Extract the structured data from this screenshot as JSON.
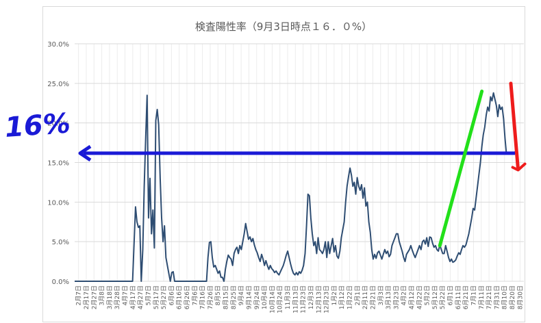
{
  "chart_data": {
    "type": "line",
    "title": "検査陽性率（9月3日時点１６．０%）",
    "xlabel": "",
    "ylabel": "",
    "ylim": [
      0,
      30
    ],
    "y_ticks": [
      "0.0%",
      "5.0%",
      "10.0%",
      "15.0%",
      "20.0%",
      "25.0%",
      "30.0%"
    ],
    "grid": true,
    "legend": "none",
    "x_tick_labels": [
      "2月7日",
      "2月17日",
      "2月27日",
      "3月8日",
      "3月18日",
      "3月28日",
      "4月7日",
      "4月17日",
      "4月27日",
      "5月7日",
      "5月17日",
      "5月27日",
      "6月6日",
      "6月16日",
      "6月26日",
      "7月6日",
      "7月16日",
      "7月26日",
      "8月5日",
      "8月15日",
      "8月25日",
      "9月4日",
      "9月14日",
      "9月24日",
      "10月4日",
      "10月14日",
      "10月24日",
      "11月3日",
      "11月13日",
      "11月23日",
      "12月3日",
      "12月13日",
      "12月23日",
      "1月2日",
      "1月12日",
      "1月22日",
      "2月1日",
      "2月11日",
      "2月21日",
      "3月3日",
      "3月13日",
      "3月23日",
      "4月2日",
      "4月12日",
      "4月22日",
      "5月2日",
      "5月12日",
      "5月22日",
      "6月1日",
      "6月11日",
      "6月21日",
      "7月1日",
      "7月11日",
      "7月21日",
      "7月31日",
      "8月10日",
      "8月20日",
      "8月30日"
    ],
    "series": [
      {
        "color": "#2e4d72",
        "points": [
          [
            0,
            0
          ],
          [
            40,
            0
          ],
          [
            42,
            9.4
          ],
          [
            43,
            7.5
          ],
          [
            44,
            6.8
          ],
          [
            45,
            7
          ],
          [
            46,
            0
          ],
          [
            47,
            4
          ],
          [
            48,
            12
          ],
          [
            49,
            18
          ],
          [
            50,
            23.5
          ],
          [
            51,
            8
          ],
          [
            52,
            13
          ],
          [
            53,
            6
          ],
          [
            54,
            9
          ],
          [
            55,
            4.2
          ],
          [
            56,
            20.3
          ],
          [
            57,
            21.7
          ],
          [
            58,
            19.8
          ],
          [
            59,
            13
          ],
          [
            60,
            8
          ],
          [
            61,
            5
          ],
          [
            62,
            7
          ],
          [
            63,
            3
          ],
          [
            64,
            2
          ],
          [
            65,
            1
          ],
          [
            66,
            0
          ],
          [
            67,
            1.1
          ],
          [
            68,
            1.2
          ],
          [
            69,
            0
          ],
          [
            70,
            0
          ],
          [
            90,
            0
          ],
          [
            91,
            0
          ],
          [
            92,
            3
          ],
          [
            93,
            4.9
          ],
          [
            94,
            5
          ],
          [
            95,
            3
          ],
          [
            96,
            1.8
          ],
          [
            97,
            2
          ],
          [
            98,
            1.5
          ],
          [
            99,
            1
          ],
          [
            100,
            1.3
          ],
          [
            101,
            0.5
          ],
          [
            102,
            0.5
          ],
          [
            103,
            0
          ],
          [
            104,
            1.5
          ],
          [
            105,
            2.5
          ],
          [
            106,
            3.3
          ],
          [
            107,
            3
          ],
          [
            108,
            2.8
          ],
          [
            109,
            2
          ],
          [
            110,
            3.5
          ],
          [
            111,
            4
          ],
          [
            112,
            4.3
          ],
          [
            113,
            3.5
          ],
          [
            114,
            4.5
          ],
          [
            115,
            4
          ],
          [
            116,
            5
          ],
          [
            117,
            6
          ],
          [
            118,
            7.3
          ],
          [
            119,
            6.3
          ],
          [
            120,
            5.3
          ],
          [
            121,
            5.6
          ],
          [
            122,
            5
          ],
          [
            123,
            5.4
          ],
          [
            124,
            4.6
          ],
          [
            125,
            4
          ],
          [
            126,
            3.6
          ],
          [
            127,
            3
          ],
          [
            128,
            2.5
          ],
          [
            129,
            3.4
          ],
          [
            130,
            2.8
          ],
          [
            131,
            2
          ],
          [
            132,
            2.6
          ],
          [
            133,
            2
          ],
          [
            134,
            1.5
          ],
          [
            135,
            2
          ],
          [
            136,
            1.6
          ],
          [
            137,
            1.4
          ],
          [
            138,
            1.1
          ],
          [
            139,
            1.3
          ],
          [
            140,
            1
          ],
          [
            141,
            0.8
          ],
          [
            142,
            1.2
          ],
          [
            143,
            1.6
          ],
          [
            144,
            2
          ],
          [
            145,
            2.6
          ],
          [
            146,
            3.3
          ],
          [
            147,
            3.8
          ],
          [
            148,
            3
          ],
          [
            149,
            2.2
          ],
          [
            150,
            1.5
          ],
          [
            151,
            1
          ],
          [
            152,
            0.8
          ],
          [
            153,
            1.1
          ],
          [
            154,
            0.8
          ],
          [
            155,
            1.2
          ],
          [
            156,
            1
          ],
          [
            157,
            1.4
          ],
          [
            158,
            2
          ],
          [
            159,
            3.5
          ],
          [
            160,
            7
          ],
          [
            161,
            11
          ],
          [
            162,
            10.8
          ],
          [
            163,
            8
          ],
          [
            164,
            6
          ],
          [
            165,
            4.5
          ],
          [
            166,
            5
          ],
          [
            167,
            3.5
          ],
          [
            168,
            5.5
          ],
          [
            169,
            4
          ],
          [
            170,
            3.8
          ],
          [
            171,
            3.5
          ],
          [
            172,
            4
          ],
          [
            173,
            5
          ],
          [
            174,
            3
          ],
          [
            175,
            5
          ],
          [
            176,
            3.5
          ],
          [
            177,
            4.5
          ],
          [
            178,
            5.4
          ],
          [
            179,
            3.7
          ],
          [
            180,
            4.5
          ],
          [
            181,
            3.2
          ],
          [
            182,
            2.9
          ],
          [
            183,
            3.8
          ],
          [
            184,
            5.5
          ],
          [
            185,
            6.5
          ],
          [
            186,
            7.5
          ],
          [
            187,
            10
          ],
          [
            188,
            12
          ],
          [
            189,
            13.2
          ],
          [
            190,
            14.3
          ],
          [
            191,
            13.4
          ],
          [
            192,
            12
          ],
          [
            193,
            12.5
          ],
          [
            194,
            11
          ],
          [
            195,
            13.1
          ],
          [
            196,
            12
          ],
          [
            197,
            11.5
          ],
          [
            198,
            12.2
          ],
          [
            199,
            10.5
          ],
          [
            200,
            11.8
          ],
          [
            201,
            9.5
          ],
          [
            202,
            10
          ],
          [
            203,
            7.5
          ],
          [
            204,
            6.2
          ],
          [
            205,
            4
          ],
          [
            206,
            2.8
          ],
          [
            207,
            3.4
          ],
          [
            208,
            2.9
          ],
          [
            209,
            3.6
          ],
          [
            210,
            3.8
          ],
          [
            211,
            3.3
          ],
          [
            212,
            2.8
          ],
          [
            213,
            3.4
          ],
          [
            214,
            4
          ],
          [
            215,
            3.5
          ],
          [
            216,
            3.8
          ],
          [
            217,
            3.1
          ],
          [
            218,
            3.4
          ],
          [
            219,
            4.5
          ],
          [
            220,
            5
          ],
          [
            221,
            5.5
          ],
          [
            222,
            6
          ],
          [
            223,
            6
          ],
          [
            224,
            5
          ],
          [
            225,
            4.4
          ],
          [
            226,
            3.8
          ],
          [
            227,
            3
          ],
          [
            228,
            2.5
          ],
          [
            229,
            3.4
          ],
          [
            230,
            3.7
          ],
          [
            231,
            4
          ],
          [
            232,
            4.5
          ],
          [
            233,
            3.9
          ],
          [
            234,
            3.4
          ],
          [
            235,
            3
          ],
          [
            236,
            3.5
          ],
          [
            237,
            4
          ],
          [
            238,
            4.5
          ],
          [
            239,
            4
          ],
          [
            240,
            5
          ],
          [
            241,
            5.2
          ],
          [
            242,
            4.7
          ],
          [
            243,
            5.5
          ],
          [
            244,
            4.4
          ],
          [
            245,
            5.6
          ],
          [
            246,
            5.5
          ],
          [
            247,
            4.8
          ],
          [
            248,
            4.3
          ],
          [
            249,
            4.5
          ],
          [
            250,
            4
          ],
          [
            251,
            3.8
          ],
          [
            252,
            4.6
          ],
          [
            253,
            4
          ],
          [
            254,
            3.5
          ],
          [
            255,
            3.5
          ],
          [
            256,
            4.5
          ],
          [
            257,
            3.8
          ],
          [
            258,
            3
          ],
          [
            259,
            2.5
          ],
          [
            260,
            2.8
          ],
          [
            261,
            2.4
          ],
          [
            262,
            2.5
          ],
          [
            263,
            2.7
          ],
          [
            264,
            3.2
          ],
          [
            265,
            3.6
          ],
          [
            266,
            3.4
          ],
          [
            267,
            4
          ],
          [
            268,
            4.5
          ],
          [
            269,
            4.3
          ],
          [
            270,
            4.6
          ],
          [
            271,
            5.3
          ],
          [
            272,
            6
          ],
          [
            273,
            7
          ],
          [
            274,
            8
          ],
          [
            275,
            9.2
          ],
          [
            276,
            9
          ],
          [
            277,
            10.5
          ],
          [
            278,
            12
          ],
          [
            279,
            13.5
          ],
          [
            280,
            15
          ],
          [
            281,
            17
          ],
          [
            282,
            18.5
          ],
          [
            283,
            19.5
          ],
          [
            284,
            21
          ],
          [
            285,
            22
          ],
          [
            286,
            21.5
          ],
          [
            287,
            23.3
          ],
          [
            288,
            22.8
          ],
          [
            289,
            23.8
          ],
          [
            290,
            23
          ],
          [
            291,
            22.2
          ],
          [
            292,
            20.8
          ],
          [
            293,
            22.3
          ],
          [
            294,
            21.7
          ],
          [
            295,
            22
          ],
          [
            296,
            20.5
          ],
          [
            297,
            18
          ],
          [
            298,
            16
          ]
        ]
      }
    ],
    "annotations": {
      "big_label": "16%",
      "arrow_level": 16.0,
      "rise_from": [
        252,
        4.5
      ],
      "rise_to": [
        281,
        24
      ],
      "fall_from": [
        301,
        25
      ],
      "fall_to": [
        306,
        15
      ],
      "colors": {
        "level": "#1a1ad6",
        "rise": "#22e01a",
        "fall": "#ee1c1c"
      }
    }
  }
}
